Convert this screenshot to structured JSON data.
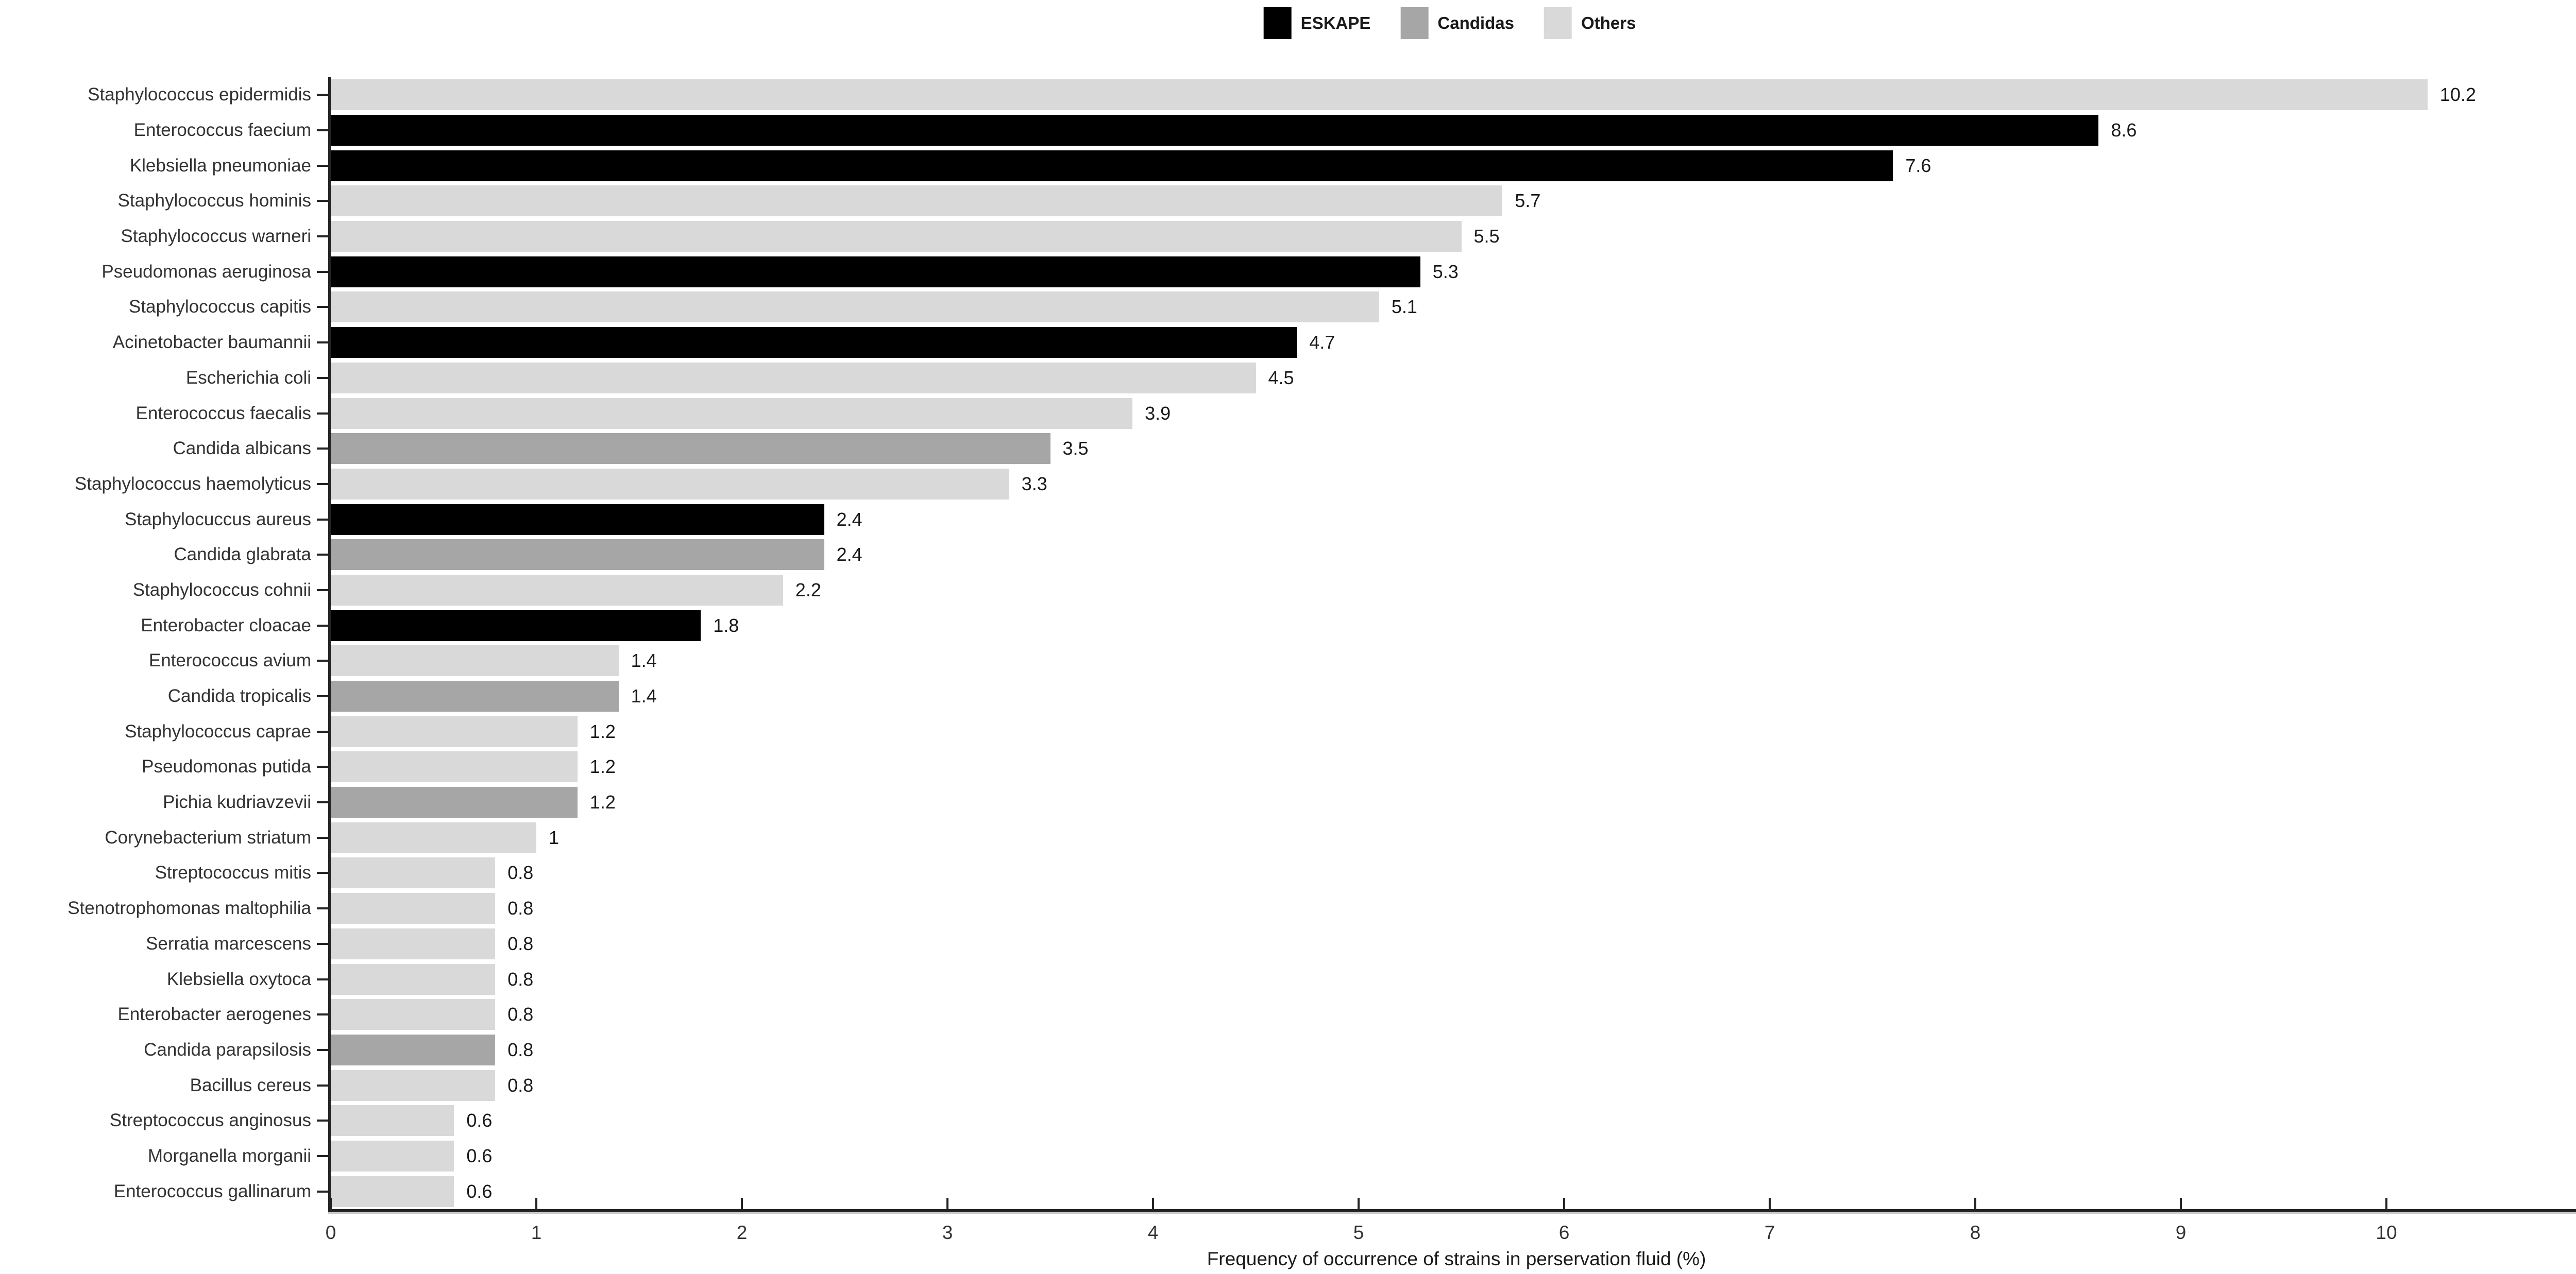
{
  "figure": {
    "legend": {
      "items": [
        {
          "label": "ESKAPE",
          "color": "#000000"
        },
        {
          "label": "Candidas",
          "color": "#a6a6a6"
        },
        {
          "label": "Others",
          "color": "#d9d9d9"
        }
      ]
    }
  },
  "chart_data": {
    "type": "bar",
    "orientation": "horizontal",
    "title": "",
    "xlabel": "Frequency of occurrence of strains in perservation fluid (%)",
    "ylabel": "",
    "xlim": [
      0,
      10.95
    ],
    "xticks": [
      0,
      1,
      2,
      3,
      4,
      5,
      6,
      7,
      8,
      9,
      10
    ],
    "grid": false,
    "legend_position": "top-center",
    "value_labels": true,
    "groups": {
      "ESKAPE": "#000000",
      "Candidas": "#a6a6a6",
      "Others": "#d9d9d9"
    },
    "bars": [
      {
        "label": "Staphylococcus epidermidis",
        "value": 10.2,
        "group": "Others"
      },
      {
        "label": "Enterococcus faecium",
        "value": 8.6,
        "group": "ESKAPE"
      },
      {
        "label": "Klebsiella pneumoniae",
        "value": 7.6,
        "group": "ESKAPE"
      },
      {
        "label": "Staphylococcus hominis",
        "value": 5.7,
        "group": "Others"
      },
      {
        "label": "Staphylococcus warneri",
        "value": 5.5,
        "group": "Others"
      },
      {
        "label": "Pseudomonas aeruginosa",
        "value": 5.3,
        "group": "ESKAPE"
      },
      {
        "label": "Staphylococcus capitis",
        "value": 5.1,
        "group": "Others"
      },
      {
        "label": "Acinetobacter baumannii",
        "value": 4.7,
        "group": "ESKAPE"
      },
      {
        "label": "Escherichia coli",
        "value": 4.5,
        "group": "Others"
      },
      {
        "label": "Enterococcus faecalis",
        "value": 3.9,
        "group": "Others"
      },
      {
        "label": "Candida albicans",
        "value": 3.5,
        "group": "Candidas"
      },
      {
        "label": "Staphylococcus haemolyticus",
        "value": 3.3,
        "group": "Others"
      },
      {
        "label": "Staphylocuccus aureus",
        "value": 2.4,
        "group": "ESKAPE"
      },
      {
        "label": "Candida glabrata",
        "value": 2.4,
        "group": "Candidas"
      },
      {
        "label": "Staphylococcus cohnii",
        "value": 2.2,
        "group": "Others"
      },
      {
        "label": "Enterobacter cloacae",
        "value": 1.8,
        "group": "ESKAPE"
      },
      {
        "label": "Enterococcus avium",
        "value": 1.4,
        "group": "Others"
      },
      {
        "label": "Candida tropicalis",
        "value": 1.4,
        "group": "Candidas"
      },
      {
        "label": "Staphylococcus caprae",
        "value": 1.2,
        "group": "Others"
      },
      {
        "label": "Pseudomonas putida",
        "value": 1.2,
        "group": "Others"
      },
      {
        "label": "Pichia kudriavzevii",
        "value": 1.2,
        "group": "Candidas"
      },
      {
        "label": "Corynebacterium striatum",
        "value": 1,
        "group": "Others"
      },
      {
        "label": "Streptococcus mitis",
        "value": 0.8,
        "group": "Others"
      },
      {
        "label": "Stenotrophomonas maltophilia",
        "value": 0.8,
        "group": "Others"
      },
      {
        "label": "Serratia marcescens",
        "value": 0.8,
        "group": "Others"
      },
      {
        "label": "Klebsiella oxytoca",
        "value": 0.8,
        "group": "Others"
      },
      {
        "label": "Enterobacter aerogenes",
        "value": 0.8,
        "group": "Others"
      },
      {
        "label": "Candida parapsilosis",
        "value": 0.8,
        "group": "Candidas"
      },
      {
        "label": "Bacillus cereus",
        "value": 0.8,
        "group": "Others"
      },
      {
        "label": "Streptococcus anginosus",
        "value": 0.6,
        "group": "Others"
      },
      {
        "label": "Morganella morganii",
        "value": 0.6,
        "group": "Others"
      },
      {
        "label": "Enterococcus gallinarum",
        "value": 0.6,
        "group": "Others"
      }
    ]
  }
}
